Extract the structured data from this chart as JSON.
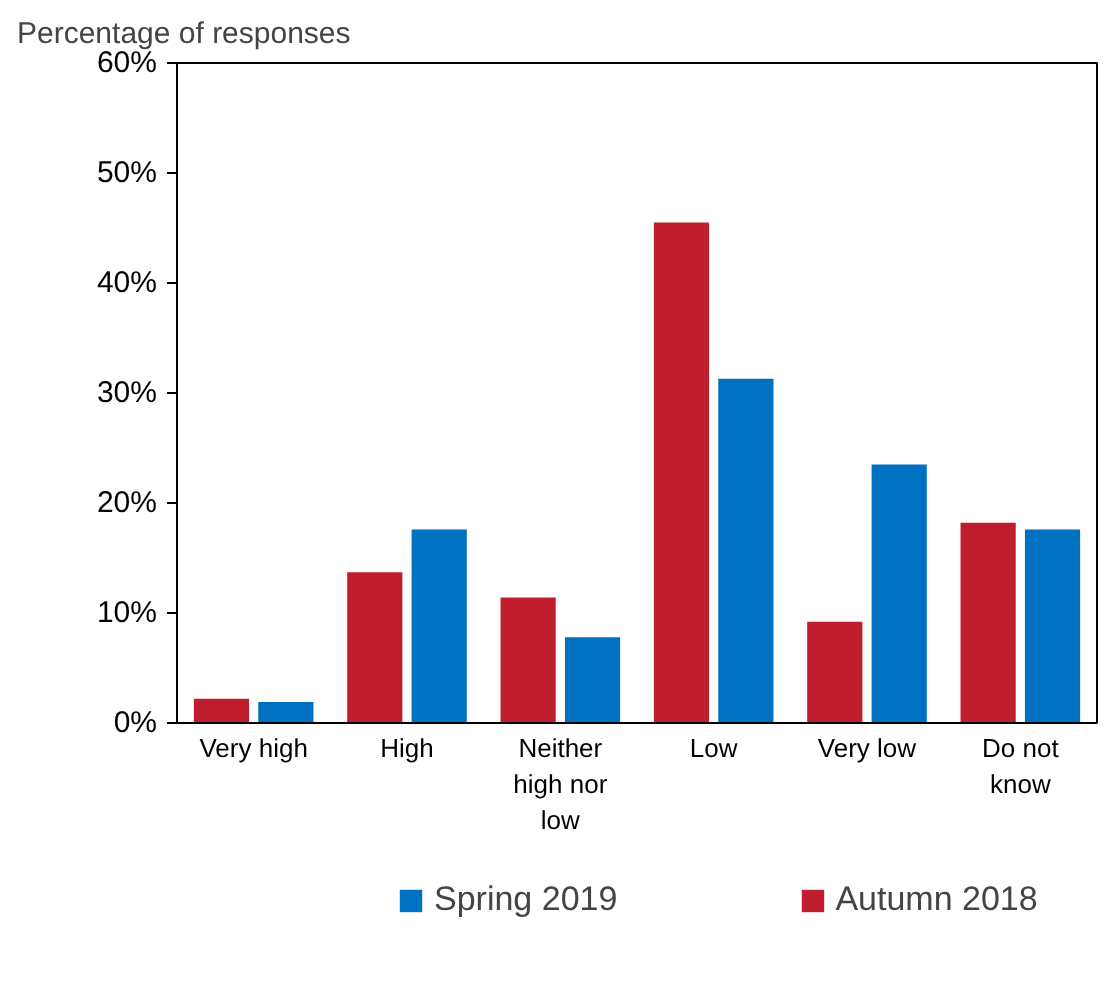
{
  "chart_data": {
    "type": "bar",
    "ylabel": "Percentage of responses",
    "categories": [
      "Very high",
      "High",
      "Neither high nor low",
      "Low",
      "Very low",
      "Do not know"
    ],
    "series": [
      {
        "name": "Autumn 2018",
        "color": "#be1e2d",
        "values": [
          2.2,
          13.7,
          11.4,
          45.5,
          9.2,
          18.2
        ]
      },
      {
        "name": "Spring 2019",
        "color": "#0070c0",
        "values": [
          1.9,
          17.6,
          7.8,
          31.3,
          23.5,
          17.6
        ]
      }
    ],
    "ylim": [
      0,
      60
    ],
    "yticks": [
      {
        "value": 0,
        "label": "0%"
      },
      {
        "value": 10,
        "label": "10%"
      },
      {
        "value": 20,
        "label": "20%"
      },
      {
        "value": 30,
        "label": "30%"
      },
      {
        "value": 40,
        "label": "40%"
      },
      {
        "value": 50,
        "label": "50%"
      },
      {
        "value": 60,
        "label": "60%"
      }
    ],
    "grid": false,
    "legend": "bottom"
  }
}
